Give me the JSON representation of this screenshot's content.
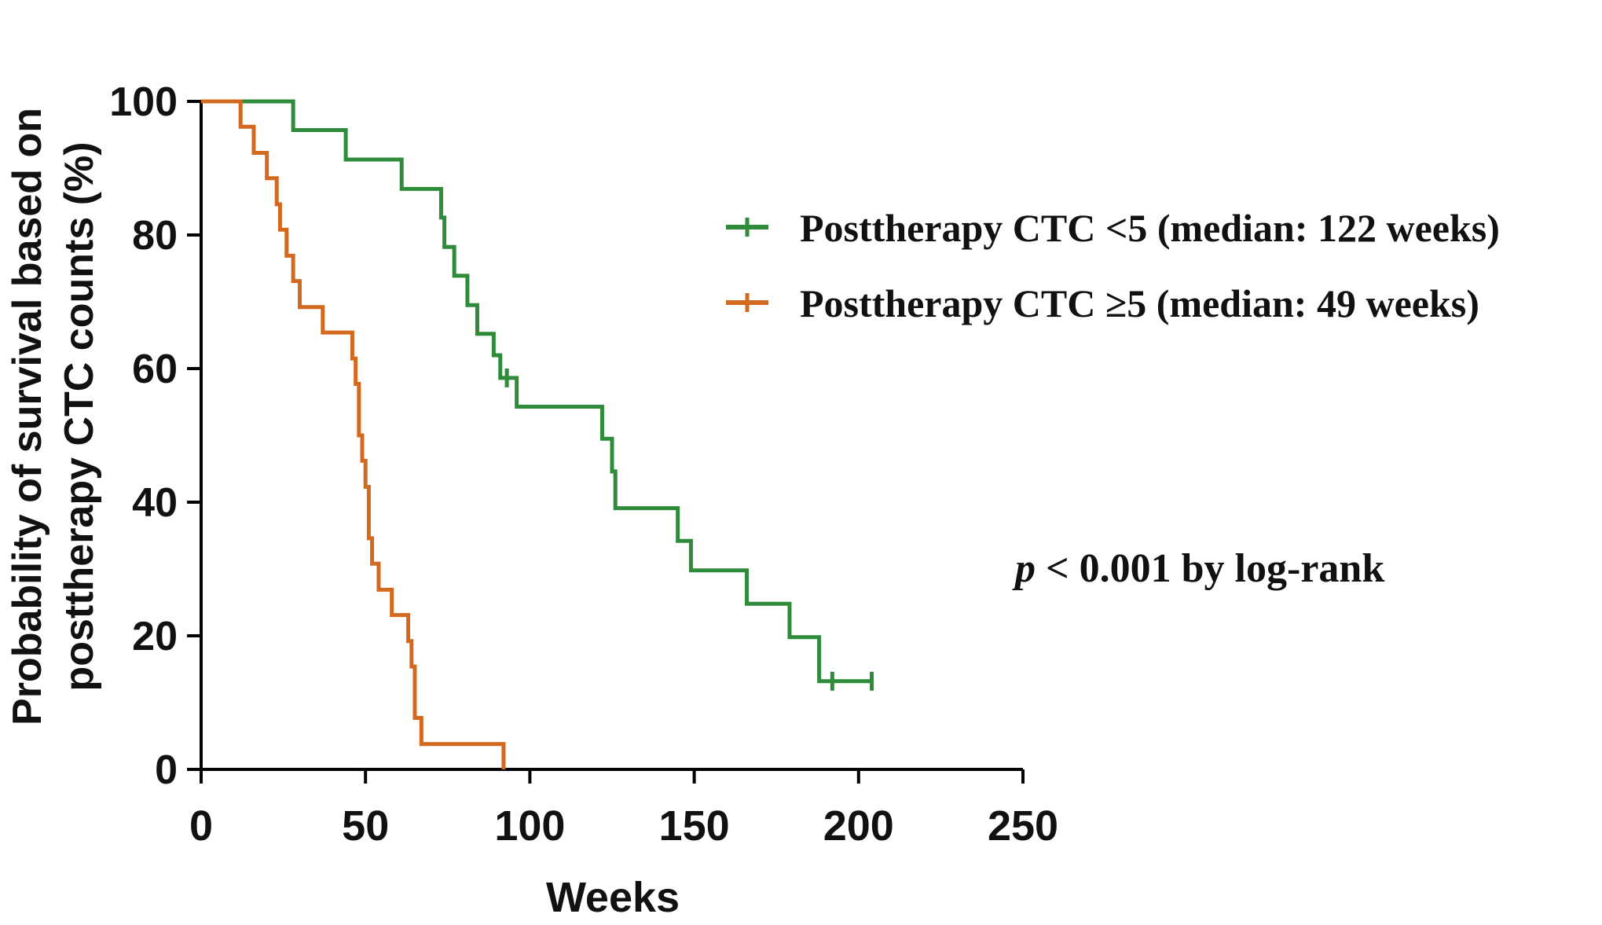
{
  "chart_data": {
    "type": "line",
    "subtype": "kaplan-meier",
    "title": "",
    "xlabel": "Weeks",
    "ylabel_line1": "Probability of survival based on",
    "ylabel_line2": "posttherapy CTC counts (%)",
    "xlim": [
      0,
      250
    ],
    "ylim": [
      0,
      100
    ],
    "x_ticks": [
      0,
      50,
      100,
      150,
      200,
      250
    ],
    "y_ticks": [
      0,
      20,
      40,
      60,
      80,
      100
    ],
    "x_tick_labels": [
      "0",
      "50",
      "100",
      "150",
      "200",
      "250"
    ],
    "y_tick_labels": [
      "0",
      "20",
      "40",
      "60",
      "80",
      "100"
    ],
    "grid": false,
    "legend_position": "right",
    "annotation": {
      "italic": "p",
      "rest": " < 0.001 by log-rank"
    },
    "series": [
      {
        "name": "Posttherapy CTC <5 (median: 122 weeks)",
        "color": "#2e8b3a",
        "steps": [
          [
            0,
            100
          ],
          [
            28,
            95.7
          ],
          [
            44,
            91.3
          ],
          [
            61,
            86.9
          ],
          [
            73,
            82.6
          ],
          [
            74,
            78.2
          ],
          [
            77,
            73.9
          ],
          [
            81,
            69.5
          ],
          [
            84,
            65.2
          ],
          [
            89,
            62
          ],
          [
            91,
            58.6
          ],
          [
            96,
            54.3
          ],
          [
            122,
            49.5
          ],
          [
            125,
            44.6
          ],
          [
            126,
            39.1
          ],
          [
            145,
            34.2
          ],
          [
            149,
            29.8
          ],
          [
            166,
            24.8
          ],
          [
            179,
            19.8
          ],
          [
            188,
            13.2
          ]
        ],
        "end_x": 204,
        "censor_x": [
          93,
          192,
          204
        ]
      },
      {
        "name": "Posttherapy CTC ≥5 (median: 49 weeks)",
        "color": "#d2691e",
        "steps": [
          [
            0,
            100
          ],
          [
            12,
            96.2
          ],
          [
            16,
            92.3
          ],
          [
            20,
            88.5
          ],
          [
            23,
            84.6
          ],
          [
            24,
            80.8
          ],
          [
            26,
            76.9
          ],
          [
            28,
            73.1
          ],
          [
            30,
            69.2
          ],
          [
            37,
            65.4
          ],
          [
            46,
            61.5
          ],
          [
            47,
            57.7
          ],
          [
            48,
            50
          ],
          [
            49,
            46.2
          ],
          [
            50,
            42.3
          ],
          [
            51,
            34.6
          ],
          [
            52,
            30.8
          ],
          [
            54,
            26.9
          ],
          [
            58,
            23.1
          ],
          [
            63,
            19.2
          ],
          [
            64,
            15.4
          ],
          [
            65,
            7.7
          ],
          [
            67,
            3.8
          ],
          [
            92,
            0
          ]
        ],
        "end_x": 92,
        "censor_x": []
      }
    ]
  }
}
